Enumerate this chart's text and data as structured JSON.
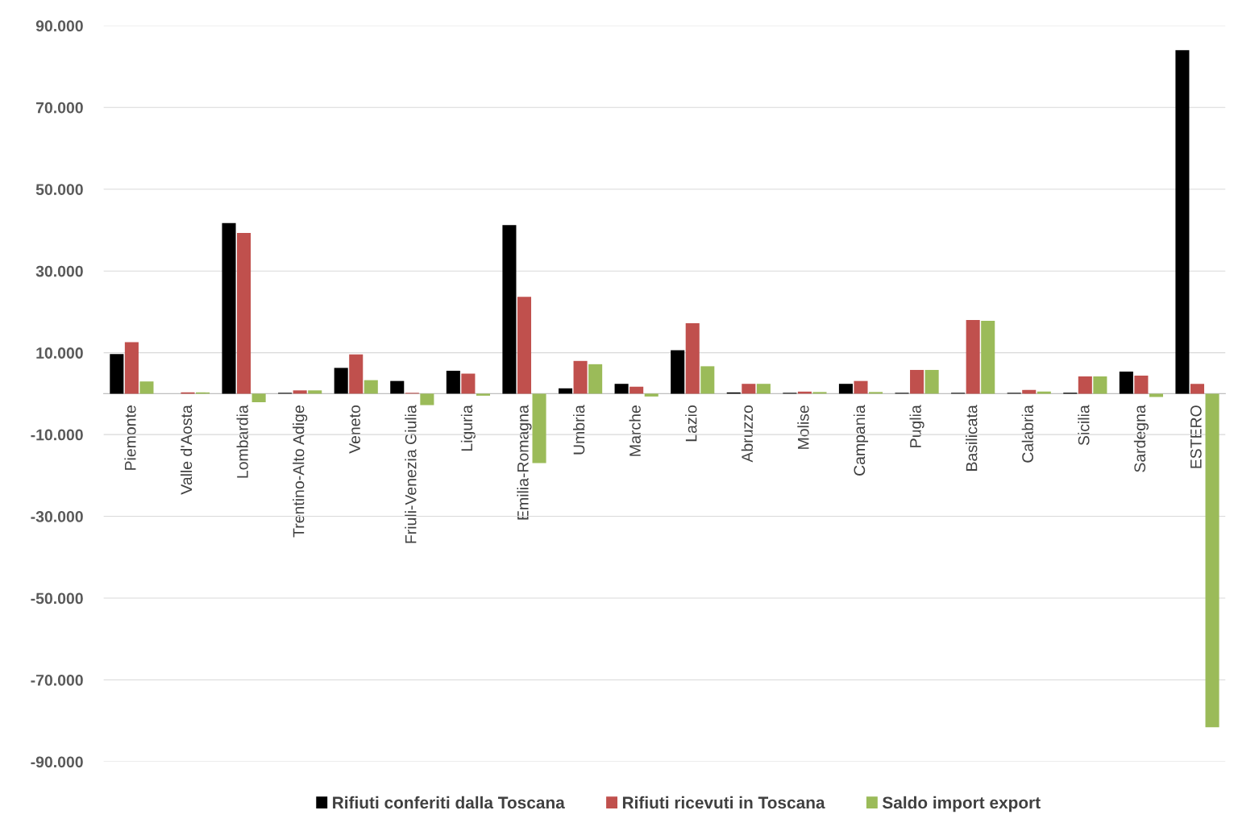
{
  "chart_data": {
    "type": "bar",
    "categories": [
      "Piemonte",
      "Valle d'Aosta",
      "Lombardia",
      "Trentino-Alto Adige",
      "Veneto",
      "Friuli-Venezia Giulia",
      "Liguria",
      "Emilia-Romagna",
      "Umbria",
      "Marche",
      "Lazio",
      "Abruzzo",
      "Molise",
      "Campania",
      "Puglia",
      "Basilicata",
      "Calabria",
      "Sicilia",
      "Sardegna",
      "ESTERO"
    ],
    "series": [
      {
        "name": "Rifiuti conferiti dalla Toscana",
        "color": "#000000",
        "values": [
          9700,
          0,
          41700,
          200,
          6300,
          3100,
          5600,
          41200,
          1300,
          2400,
          10600,
          300,
          200,
          2400,
          200,
          200,
          200,
          200,
          5400,
          84000
        ]
      },
      {
        "name": "Rifiuti ricevuti in Toscana",
        "color": "#c0504d",
        "values": [
          12600,
          300,
          39300,
          800,
          9600,
          200,
          4900,
          23700,
          8000,
          1700,
          17200,
          2400,
          500,
          3100,
          5800,
          18000,
          900,
          4200,
          4400,
          2400
        ]
      },
      {
        "name": "Saldo import export",
        "color": "#9bbb59",
        "values": [
          3000,
          300,
          -2100,
          800,
          3300,
          -2800,
          -500,
          -17000,
          7200,
          -700,
          6700,
          2400,
          400,
          400,
          5800,
          17800,
          500,
          4200,
          -800,
          -81600
        ]
      }
    ],
    "ylim": [
      -90000,
      90000
    ],
    "yticks": [
      {
        "value": -90000,
        "label": "-90.000"
      },
      {
        "value": -70000,
        "label": "-70.000"
      },
      {
        "value": -50000,
        "label": "-50.000"
      },
      {
        "value": -30000,
        "label": "-30.000"
      },
      {
        "value": -10000,
        "label": "-10.000"
      },
      {
        "value": 10000,
        "label": "10.000"
      },
      {
        "value": 30000,
        "label": "30.000"
      },
      {
        "value": 50000,
        "label": "50.000"
      },
      {
        "value": 70000,
        "label": "70.000"
      },
      {
        "value": 90000,
        "label": "90.000"
      }
    ],
    "grid": "y",
    "legend": "bottom"
  }
}
